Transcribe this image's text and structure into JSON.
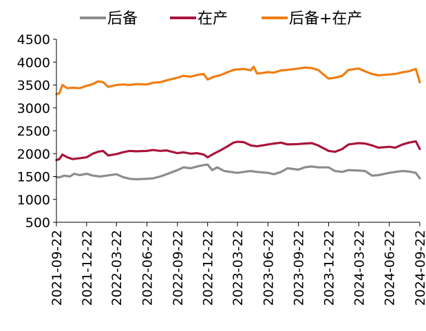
{
  "chart_data": {
    "type": "line",
    "title": "",
    "xlabel": "",
    "ylabel": "",
    "ylim": [
      500,
      4500
    ],
    "yticks": [
      500,
      1000,
      1500,
      2000,
      2500,
      3000,
      3500,
      4000,
      4500
    ],
    "xlim": [
      "2021-09-22",
      "2024-09-22"
    ],
    "xticks": [
      "2021-09-22",
      "2021-12-22",
      "2022-03-22",
      "2022-06-22",
      "2022-09-22",
      "2022-12-22",
      "2023-03-22",
      "2023-06-22",
      "2023-09-22",
      "2023-12-22",
      "2024-03-22",
      "2024-06-22",
      "2024-09-22"
    ],
    "grid": false,
    "legend_position": "top",
    "series": [
      {
        "name": "后备",
        "color": "#8c8c8c",
        "points": [
          [
            "2021-09-22",
            1490
          ],
          [
            "2021-10-01",
            1480
          ],
          [
            "2021-10-15",
            1520
          ],
          [
            "2021-11-01",
            1500
          ],
          [
            "2021-11-15",
            1560
          ],
          [
            "2021-12-01",
            1530
          ],
          [
            "2021-12-22",
            1560
          ],
          [
            "2022-01-10",
            1520
          ],
          [
            "2022-02-01",
            1500
          ],
          [
            "2022-02-20",
            1520
          ],
          [
            "2022-03-22",
            1550
          ],
          [
            "2022-04-10",
            1490
          ],
          [
            "2022-05-01",
            1450
          ],
          [
            "2022-05-20",
            1440
          ],
          [
            "2022-06-22",
            1450
          ],
          [
            "2022-07-10",
            1460
          ],
          [
            "2022-08-01",
            1500
          ],
          [
            "2022-08-20",
            1550
          ],
          [
            "2022-09-22",
            1640
          ],
          [
            "2022-10-10",
            1700
          ],
          [
            "2022-11-01",
            1680
          ],
          [
            "2022-11-20",
            1720
          ],
          [
            "2022-12-10",
            1750
          ],
          [
            "2022-12-22",
            1760
          ],
          [
            "2023-01-05",
            1640
          ],
          [
            "2023-01-20",
            1700
          ],
          [
            "2023-02-10",
            1620
          ],
          [
            "2023-03-01",
            1600
          ],
          [
            "2023-03-22",
            1580
          ],
          [
            "2023-04-10",
            1600
          ],
          [
            "2023-05-01",
            1620
          ],
          [
            "2023-05-20",
            1600
          ],
          [
            "2023-06-22",
            1580
          ],
          [
            "2023-07-10",
            1550
          ],
          [
            "2023-08-01",
            1600
          ],
          [
            "2023-08-20",
            1680
          ],
          [
            "2023-09-22",
            1650
          ],
          [
            "2023-10-10",
            1700
          ],
          [
            "2023-11-01",
            1720
          ],
          [
            "2023-11-20",
            1700
          ],
          [
            "2023-12-22",
            1700
          ],
          [
            "2024-01-10",
            1620
          ],
          [
            "2024-02-01",
            1600
          ],
          [
            "2024-02-20",
            1640
          ],
          [
            "2024-03-22",
            1630
          ],
          [
            "2024-04-10",
            1620
          ],
          [
            "2024-05-01",
            1520
          ],
          [
            "2024-05-20",
            1530
          ],
          [
            "2024-06-22",
            1580
          ],
          [
            "2024-07-10",
            1600
          ],
          [
            "2024-08-01",
            1620
          ],
          [
            "2024-08-20",
            1610
          ],
          [
            "2024-09-10",
            1580
          ],
          [
            "2024-09-22",
            1460
          ]
        ]
      },
      {
        "name": "在产",
        "color": "#a8143a",
        "points": [
          [
            "2021-09-22",
            1860
          ],
          [
            "2021-10-01",
            1880
          ],
          [
            "2021-10-10",
            1980
          ],
          [
            "2021-10-25",
            1920
          ],
          [
            "2021-11-10",
            1880
          ],
          [
            "2021-12-01",
            1900
          ],
          [
            "2021-12-22",
            1920
          ],
          [
            "2022-01-10",
            2000
          ],
          [
            "2022-01-25",
            2040
          ],
          [
            "2022-02-10",
            2060
          ],
          [
            "2022-02-25",
            1960
          ],
          [
            "2022-03-22",
            1990
          ],
          [
            "2022-04-10",
            2030
          ],
          [
            "2022-05-01",
            2060
          ],
          [
            "2022-05-20",
            2050
          ],
          [
            "2022-06-22",
            2060
          ],
          [
            "2022-07-10",
            2080
          ],
          [
            "2022-08-01",
            2060
          ],
          [
            "2022-08-20",
            2070
          ],
          [
            "2022-09-22",
            2010
          ],
          [
            "2022-10-10",
            2030
          ],
          [
            "2022-11-01",
            2000
          ],
          [
            "2022-11-20",
            2010
          ],
          [
            "2022-12-10",
            1980
          ],
          [
            "2022-12-22",
            1920
          ],
          [
            "2023-01-10",
            2000
          ],
          [
            "2023-02-01",
            2080
          ],
          [
            "2023-02-20",
            2160
          ],
          [
            "2023-03-10",
            2240
          ],
          [
            "2023-03-22",
            2260
          ],
          [
            "2023-04-10",
            2250
          ],
          [
            "2023-05-01",
            2180
          ],
          [
            "2023-05-20",
            2160
          ],
          [
            "2023-06-22",
            2200
          ],
          [
            "2023-07-10",
            2220
          ],
          [
            "2023-08-01",
            2240
          ],
          [
            "2023-08-20",
            2200
          ],
          [
            "2023-09-22",
            2210
          ],
          [
            "2023-10-10",
            2220
          ],
          [
            "2023-11-01",
            2230
          ],
          [
            "2023-11-20",
            2180
          ],
          [
            "2023-12-22",
            2060
          ],
          [
            "2024-01-10",
            2040
          ],
          [
            "2024-02-01",
            2100
          ],
          [
            "2024-02-20",
            2200
          ],
          [
            "2024-03-22",
            2230
          ],
          [
            "2024-04-10",
            2220
          ],
          [
            "2024-05-01",
            2180
          ],
          [
            "2024-05-20",
            2130
          ],
          [
            "2024-06-22",
            2150
          ],
          [
            "2024-07-10",
            2130
          ],
          [
            "2024-08-01",
            2200
          ],
          [
            "2024-08-20",
            2240
          ],
          [
            "2024-09-10",
            2270
          ],
          [
            "2024-09-22",
            2100
          ]
        ]
      },
      {
        "name": "后备+在产",
        "color": "#f07d12",
        "points": [
          [
            "2021-09-22",
            3300
          ],
          [
            "2021-10-01",
            3320
          ],
          [
            "2021-10-10",
            3500
          ],
          [
            "2021-10-25",
            3430
          ],
          [
            "2021-11-10",
            3440
          ],
          [
            "2021-12-01",
            3430
          ],
          [
            "2021-12-22",
            3480
          ],
          [
            "2022-01-10",
            3520
          ],
          [
            "2022-01-25",
            3580
          ],
          [
            "2022-02-10",
            3560
          ],
          [
            "2022-02-25",
            3460
          ],
          [
            "2022-03-22",
            3500
          ],
          [
            "2022-04-10",
            3510
          ],
          [
            "2022-05-01",
            3500
          ],
          [
            "2022-05-20",
            3520
          ],
          [
            "2022-06-22",
            3510
          ],
          [
            "2022-07-10",
            3550
          ],
          [
            "2022-08-01",
            3560
          ],
          [
            "2022-08-20",
            3600
          ],
          [
            "2022-09-22",
            3660
          ],
          [
            "2022-10-10",
            3700
          ],
          [
            "2022-11-01",
            3680
          ],
          [
            "2022-11-20",
            3720
          ],
          [
            "2022-12-10",
            3740
          ],
          [
            "2022-12-22",
            3620
          ],
          [
            "2023-01-10",
            3680
          ],
          [
            "2023-02-01",
            3720
          ],
          [
            "2023-02-20",
            3780
          ],
          [
            "2023-03-10",
            3830
          ],
          [
            "2023-03-22",
            3840
          ],
          [
            "2023-04-10",
            3850
          ],
          [
            "2023-05-01",
            3820
          ],
          [
            "2023-05-10",
            3900
          ],
          [
            "2023-05-20",
            3750
          ],
          [
            "2023-06-22",
            3780
          ],
          [
            "2023-07-10",
            3770
          ],
          [
            "2023-08-01",
            3820
          ],
          [
            "2023-08-20",
            3830
          ],
          [
            "2023-09-22",
            3860
          ],
          [
            "2023-10-10",
            3880
          ],
          [
            "2023-11-01",
            3870
          ],
          [
            "2023-11-20",
            3830
          ],
          [
            "2023-12-22",
            3640
          ],
          [
            "2024-01-10",
            3660
          ],
          [
            "2024-02-01",
            3700
          ],
          [
            "2024-02-20",
            3830
          ],
          [
            "2024-03-22",
            3860
          ],
          [
            "2024-04-10",
            3800
          ],
          [
            "2024-05-01",
            3740
          ],
          [
            "2024-05-20",
            3710
          ],
          [
            "2024-06-22",
            3730
          ],
          [
            "2024-07-10",
            3740
          ],
          [
            "2024-08-01",
            3780
          ],
          [
            "2024-08-20",
            3800
          ],
          [
            "2024-09-10",
            3850
          ],
          [
            "2024-09-22",
            3560
          ]
        ]
      }
    ]
  }
}
